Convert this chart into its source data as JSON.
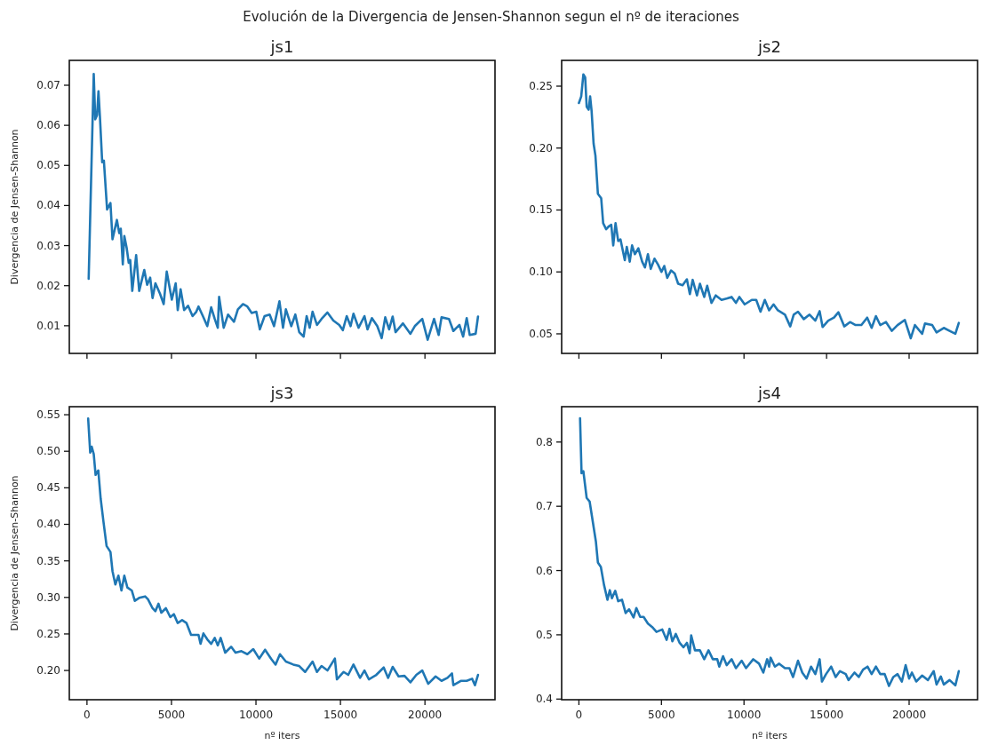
{
  "chart_data": [
    {
      "type": "line",
      "title": "js1",
      "ylabel": "Divergencia de Jensen-Shannon",
      "annotations": [
        "Evolución de la Divergencia de Jensen-Shannon segun el nº de iteraciones"
      ],
      "xlim": [
        -1045,
        24145
      ],
      "ylim": [
        0.0031,
        0.0762
      ],
      "xticks": [
        0,
        5000,
        10000,
        15000,
        20000
      ],
      "yticks": [
        0.01,
        0.02,
        0.03,
        0.04,
        0.05,
        0.06,
        0.07
      ],
      "tick_labels": "y",
      "x": [
        100,
        400,
        490,
        600,
        680,
        770,
        900,
        1000,
        1190,
        1390,
        1510,
        1770,
        1910,
        2000,
        2120,
        2210,
        2350,
        2470,
        2560,
        2680,
        2910,
        3090,
        3390,
        3560,
        3740,
        3880,
        4050,
        4320,
        4540,
        4720,
        5020,
        5250,
        5370,
        5540,
        5750,
        5980,
        6250,
        6470,
        6600,
        6860,
        7120,
        7350,
        7560,
        7740,
        7820,
        8090,
        8350,
        8700,
        8930,
        9230,
        9490,
        9750,
        10020,
        10230,
        10510,
        10810,
        11070,
        11390,
        11600,
        11770,
        12090,
        12330,
        12560,
        12820,
        13000,
        13180,
        13350,
        13610,
        13880,
        14230,
        14580,
        14930,
        15140,
        15370,
        15600,
        15770,
        16070,
        16420,
        16600,
        16860,
        17180,
        17440,
        17650,
        17880,
        18090,
        18260,
        18700,
        19140,
        19400,
        19840,
        20160,
        20540,
        20810,
        20980,
        21420,
        21680,
        22040,
        22260,
        22470,
        22650,
        23000,
        23140
      ],
      "series": [
        {
          "color": "#1f77b4",
          "values": [
            0.0217,
            0.0728,
            0.0615,
            0.0626,
            0.0685,
            0.0619,
            0.0508,
            0.0512,
            0.039,
            0.0406,
            0.0316,
            0.0364,
            0.0331,
            0.0342,
            0.0253,
            0.0324,
            0.0294,
            0.0257,
            0.0264,
            0.0187,
            0.0276,
            0.0187,
            0.0239,
            0.0202,
            0.022,
            0.0169,
            0.0206,
            0.018,
            0.0154,
            0.0235,
            0.0165,
            0.0206,
            0.0139,
            0.0191,
            0.0139,
            0.015,
            0.0124,
            0.0135,
            0.0148,
            0.0124,
            0.0099,
            0.0146,
            0.0117,
            0.0095,
            0.0172,
            0.0095,
            0.0128,
            0.011,
            0.0141,
            0.0154,
            0.0148,
            0.0132,
            0.0135,
            0.0091,
            0.0124,
            0.0128,
            0.0099,
            0.0161,
            0.0095,
            0.0141,
            0.0099,
            0.0128,
            0.0084,
            0.0073,
            0.0124,
            0.0095,
            0.0135,
            0.0102,
            0.0117,
            0.0133,
            0.0113,
            0.0102,
            0.0089,
            0.0124,
            0.0099,
            0.013,
            0.0095,
            0.0124,
            0.0091,
            0.0119,
            0.0099,
            0.0069,
            0.0121,
            0.0091,
            0.0123,
            0.0084,
            0.0106,
            0.008,
            0.0099,
            0.0117,
            0.0065,
            0.0117,
            0.0077,
            0.0121,
            0.0117,
            0.0087,
            0.0102,
            0.0073,
            0.0119,
            0.0077,
            0.008,
            0.0123
          ]
        }
      ]
    },
    {
      "type": "line",
      "title": "js2",
      "xlim": [
        -1045,
        24145
      ],
      "ylim": [
        0.0342,
        0.2708
      ],
      "xticks": [
        0,
        5000,
        10000,
        15000,
        20000
      ],
      "yticks": [
        {
          "value": 0.05,
          "label": "0.05"
        },
        {
          "value": 0.1,
          "label": "0.10"
        },
        {
          "value": 0.15,
          "label": "0.15"
        },
        {
          "value": 0.2,
          "label": "0.20"
        },
        {
          "value": 0.25,
          "label": "0.25"
        }
      ],
      "tick_labels": "y",
      "x": [
        0,
        140,
        270,
        380,
        470,
        590,
        680,
        770,
        890,
        1000,
        1150,
        1350,
        1470,
        1650,
        1820,
        1960,
        2080,
        2220,
        2380,
        2520,
        2780,
        2900,
        3080,
        3220,
        3390,
        3600,
        3830,
        4000,
        4180,
        4350,
        4580,
        4790,
        5000,
        5170,
        5350,
        5580,
        5800,
        6010,
        6280,
        6540,
        6720,
        6890,
        7150,
        7330,
        7590,
        7770,
        8030,
        8290,
        8640,
        8990,
        9250,
        9510,
        9720,
        10040,
        10470,
        10740,
        11000,
        11260,
        11520,
        11790,
        12050,
        12480,
        12800,
        13010,
        13270,
        13620,
        13970,
        14320,
        14580,
        14760,
        15100,
        15450,
        15720,
        16070,
        16420,
        16760,
        17110,
        17460,
        17730,
        17990,
        18250,
        18600,
        18950,
        19300,
        19740,
        20100,
        20350,
        20790,
        20960,
        21400,
        21660,
        22100,
        22450,
        22800,
        23010
      ],
      "series": [
        {
          "color": "#1f77b4",
          "values": [
            0.2364,
            0.2417,
            0.2595,
            0.2571,
            0.2333,
            0.231,
            0.2417,
            0.2298,
            0.2036,
            0.194,
            0.1631,
            0.1595,
            0.1393,
            0.1345,
            0.1369,
            0.1381,
            0.1214,
            0.1393,
            0.125,
            0.1262,
            0.1095,
            0.1202,
            0.1083,
            0.1214,
            0.1143,
            0.119,
            0.1083,
            0.1036,
            0.1143,
            0.1024,
            0.1107,
            0.106,
            0.1,
            0.1048,
            0.0952,
            0.1012,
            0.0988,
            0.0905,
            0.0893,
            0.094,
            0.0821,
            0.0936,
            0.081,
            0.0905,
            0.0798,
            0.0888,
            0.075,
            0.081,
            0.0774,
            0.0786,
            0.0798,
            0.075,
            0.0798,
            0.0738,
            0.0774,
            0.0774,
            0.0679,
            0.0774,
            0.069,
            0.0738,
            0.069,
            0.0655,
            0.056,
            0.0655,
            0.0679,
            0.0619,
            0.0655,
            0.0607,
            0.0683,
            0.0555,
            0.0607,
            0.0631,
            0.0674,
            0.056,
            0.0595,
            0.0571,
            0.0571,
            0.0631,
            0.0548,
            0.0643,
            0.0571,
            0.0595,
            0.0524,
            0.0571,
            0.0612,
            0.0464,
            0.0571,
            0.05,
            0.0583,
            0.0571,
            0.0512,
            0.0548,
            0.0524,
            0.05,
            0.0588
          ]
        }
      ]
    },
    {
      "type": "line",
      "title": "js3",
      "xlabel": "nº iters",
      "ylabel": "Divergencia de Jensen-Shannon",
      "xlim": [
        -1045,
        24145
      ],
      "ylim": [
        0.16,
        0.561
      ],
      "xticks": [
        0,
        5000,
        10000,
        15000,
        20000
      ],
      "yticks": [
        {
          "value": 0.2,
          "label": "0.20"
        },
        {
          "value": 0.25,
          "label": "0.25"
        },
        {
          "value": 0.3,
          "label": "0.30"
        },
        {
          "value": 0.35,
          "label": "0.35"
        },
        {
          "value": 0.4,
          "label": "0.40"
        },
        {
          "value": 0.45,
          "label": "0.45"
        },
        {
          "value": 0.5,
          "label": "0.50"
        },
        {
          "value": 0.55,
          "label": "0.55"
        }
      ],
      "x": [
        70,
        190,
        280,
        400,
        510,
        670,
        810,
        980,
        1160,
        1390,
        1510,
        1680,
        1860,
        2040,
        2210,
        2390,
        2650,
        2830,
        3090,
        3440,
        3610,
        3880,
        4050,
        4230,
        4400,
        4670,
        4930,
        5140,
        5370,
        5630,
        5890,
        6160,
        6330,
        6600,
        6720,
        6890,
        7120,
        7350,
        7560,
        7740,
        7910,
        8180,
        8530,
        8790,
        9140,
        9490,
        9840,
        10190,
        10540,
        10890,
        11160,
        11420,
        11770,
        12210,
        12560,
        12910,
        13350,
        13610,
        13880,
        14230,
        14670,
        14790,
        15190,
        15460,
        15770,
        16160,
        16420,
        16680,
        17120,
        17560,
        17820,
        18090,
        18440,
        18790,
        19140,
        19490,
        19840,
        20190,
        20630,
        20980,
        21330,
        21600,
        21680,
        22120,
        22470,
        22790,
        22960,
        23140
      ],
      "series": [
        {
          "color": "#1f77b4",
          "values": [
            0.5447,
            0.4981,
            0.5062,
            0.4961,
            0.4677,
            0.4738,
            0.4352,
            0.4028,
            0.3704,
            0.3622,
            0.3359,
            0.3176,
            0.3298,
            0.3095,
            0.3298,
            0.3136,
            0.3095,
            0.2953,
            0.2993,
            0.3014,
            0.2974,
            0.2852,
            0.2811,
            0.2913,
            0.2791,
            0.2852,
            0.273,
            0.2771,
            0.2649,
            0.2689,
            0.2649,
            0.2487,
            0.2487,
            0.2487,
            0.2365,
            0.2507,
            0.2426,
            0.2365,
            0.2446,
            0.2345,
            0.2446,
            0.2244,
            0.2325,
            0.2244,
            0.2264,
            0.2223,
            0.2292,
            0.2163,
            0.2284,
            0.2163,
            0.2081,
            0.2223,
            0.2122,
            0.2081,
            0.2061,
            0.198,
            0.2122,
            0.198,
            0.2061,
            0.2,
            0.2163,
            0.1879,
            0.198,
            0.194,
            0.2081,
            0.1899,
            0.2,
            0.1879,
            0.194,
            0.2041,
            0.1899,
            0.2049,
            0.1919,
            0.1927,
            0.1838,
            0.194,
            0.2,
            0.1818,
            0.1919,
            0.1858,
            0.1899,
            0.196,
            0.1798,
            0.1858,
            0.1858,
            0.1887,
            0.1798,
            0.194
          ]
        }
      ]
    },
    {
      "type": "line",
      "title": "js4",
      "xlabel": "nº iters",
      "xlim": [
        -1045,
        24145
      ],
      "ylim": [
        0.399,
        0.855
      ],
      "xticks": [
        0,
        5000,
        10000,
        15000,
        20000
      ],
      "yticks": [
        0.4,
        0.5,
        0.6,
        0.7,
        0.8
      ],
      "x": [
        70,
        160,
        270,
        470,
        650,
        820,
        1030,
        1150,
        1330,
        1520,
        1730,
        1870,
        2000,
        2200,
        2380,
        2610,
        2830,
        3040,
        3310,
        3480,
        3710,
        3920,
        4180,
        4440,
        4700,
        5050,
        5310,
        5490,
        5660,
        5870,
        6100,
        6330,
        6540,
        6710,
        6800,
        7030,
        7330,
        7590,
        7850,
        8110,
        8380,
        8500,
        8730,
        8950,
        9250,
        9510,
        9860,
        10120,
        10560,
        10910,
        11170,
        11400,
        11520,
        11610,
        11870,
        12130,
        12480,
        12750,
        12970,
        13270,
        13530,
        13790,
        14060,
        14320,
        14580,
        14720,
        14970,
        15280,
        15550,
        15810,
        16160,
        16330,
        16690,
        16950,
        17210,
        17480,
        17730,
        17990,
        18250,
        18520,
        18780,
        19040,
        19300,
        19560,
        19790,
        20000,
        20170,
        20430,
        20790,
        21140,
        21490,
        21660,
        21920,
        22100,
        22450,
        22800,
        23010
      ],
      "series": [
        {
          "color": "#1f77b4",
          "values": [
            0.837,
            0.7514,
            0.7546,
            0.713,
            0.7074,
            0.6796,
            0.6449,
            0.6125,
            0.6056,
            0.5778,
            0.5546,
            0.5694,
            0.5569,
            0.5685,
            0.5523,
            0.5546,
            0.5338,
            0.5398,
            0.5269,
            0.5417,
            0.5278,
            0.5278,
            0.5176,
            0.512,
            0.5046,
            0.5083,
            0.4921,
            0.5093,
            0.4898,
            0.5014,
            0.4875,
            0.4806,
            0.4875,
            0.4713,
            0.4991,
            0.4759,
            0.4759,
            0.462,
            0.4759,
            0.462,
            0.462,
            0.4505,
            0.4667,
            0.4528,
            0.462,
            0.4481,
            0.4597,
            0.4481,
            0.462,
            0.4551,
            0.4412,
            0.462,
            0.4505,
            0.4644,
            0.4505,
            0.4551,
            0.4481,
            0.4481,
            0.4343,
            0.4597,
            0.4412,
            0.4319,
            0.4505,
            0.4389,
            0.462,
            0.4273,
            0.4389,
            0.4505,
            0.4343,
            0.4435,
            0.4389,
            0.4296,
            0.4412,
            0.4343,
            0.4458,
            0.4505,
            0.4389,
            0.4505,
            0.4389,
            0.4389,
            0.4204,
            0.4343,
            0.4389,
            0.4273,
            0.4528,
            0.4319,
            0.4412,
            0.4273,
            0.4366,
            0.4296,
            0.4435,
            0.4227,
            0.4352,
            0.4227,
            0.4296,
            0.4213,
            0.4435
          ]
        }
      ]
    }
  ]
}
